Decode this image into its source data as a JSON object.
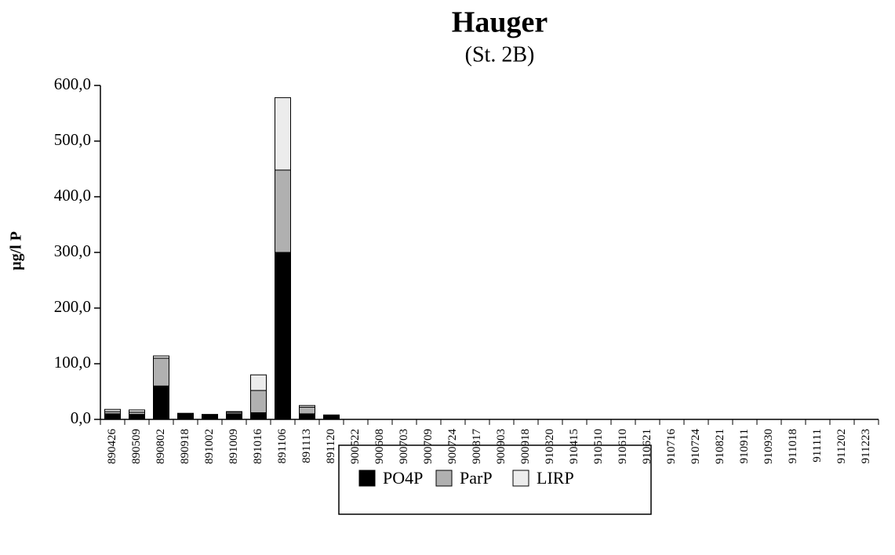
{
  "chart_data": {
    "type": "stacked-bar",
    "title": "Hauger",
    "subtitle": "(St. 2B)",
    "y_label": "µg/l P",
    "categories": [
      "890426",
      "890509",
      "890802",
      "890918",
      "891002",
      "891009",
      "891016",
      "891106",
      "891113",
      "891120",
      "900522",
      "900608",
      "900703",
      "900709",
      "900724",
      "900817",
      "900903",
      "900918",
      "910320",
      "910415",
      "910510",
      "910610",
      "910621",
      "910716",
      "910724",
      "910821",
      "910911",
      "910930",
      "911018",
      "911111",
      "911202",
      "911223"
    ],
    "series": [
      {
        "name": "PO4P",
        "color": "#000000",
        "values": [
          10,
          9,
          60,
          10,
          8,
          10,
          12,
          300,
          10,
          7,
          null,
          null,
          null,
          null,
          null,
          null,
          null,
          null,
          null,
          null,
          null,
          null,
          null,
          null,
          null,
          null,
          null,
          null,
          null,
          null,
          null,
          null
        ]
      },
      {
        "name": "ParP",
        "color": "#b0b0b0",
        "values": [
          4,
          4,
          50,
          1,
          1,
          3,
          40,
          148,
          12,
          1,
          null,
          null,
          null,
          null,
          null,
          null,
          null,
          null,
          null,
          null,
          null,
          null,
          null,
          null,
          null,
          null,
          null,
          null,
          null,
          null,
          null,
          null
        ]
      },
      {
        "name": "LIRP",
        "color": "#ececec",
        "values": [
          4,
          4,
          4,
          0,
          0,
          1,
          28,
          130,
          3,
          0,
          null,
          null,
          null,
          null,
          null,
          null,
          null,
          null,
          null,
          null,
          null,
          null,
          null,
          null,
          null,
          null,
          null,
          null,
          null,
          null,
          null,
          null
        ]
      }
    ],
    "ylim": [
      0,
      600
    ],
    "yticks": [
      {
        "value": 0,
        "label": "0,0"
      },
      {
        "value": 100,
        "label": "100,0"
      },
      {
        "value": 200,
        "label": "200,0"
      },
      {
        "value": 300,
        "label": "300,0"
      },
      {
        "value": 400,
        "label": "400,0"
      },
      {
        "value": 500,
        "label": "500,0"
      },
      {
        "value": 600,
        "label": "600,0"
      }
    ]
  }
}
